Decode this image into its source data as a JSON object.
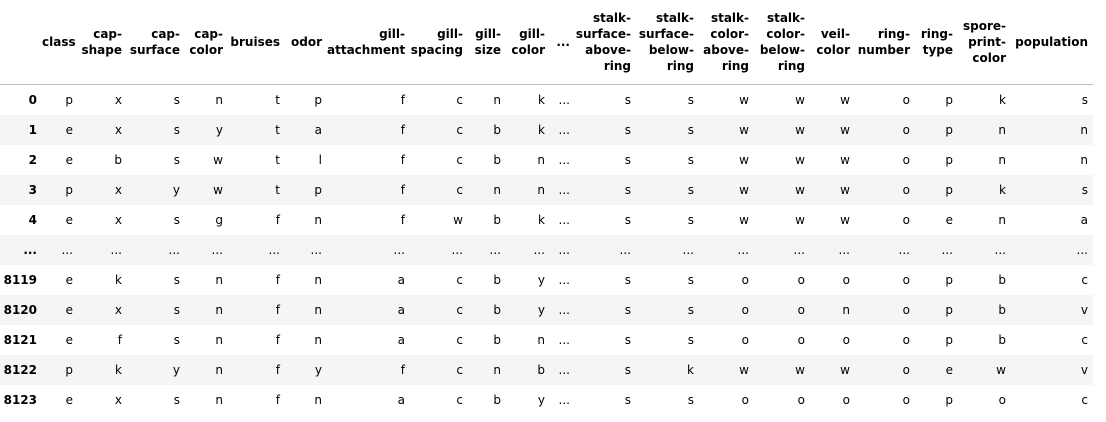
{
  "table": {
    "columns": [
      "class",
      "cap-shape",
      "cap-surface",
      "cap-color",
      "bruises",
      "odor",
      "gill-attachment",
      "gill-spacing",
      "gill-size",
      "gill-color",
      "...",
      "stalk-surface-above-ring",
      "stalk-surface-below-ring",
      "stalk-color-above-ring",
      "stalk-color-below-ring",
      "veil-color",
      "ring-number",
      "ring-type",
      "spore-print-color",
      "population"
    ],
    "rows": [
      {
        "index": "0",
        "cells": [
          "p",
          "x",
          "s",
          "n",
          "t",
          "p",
          "f",
          "c",
          "n",
          "k",
          "...",
          "s",
          "s",
          "w",
          "w",
          "w",
          "o",
          "p",
          "k",
          "s"
        ]
      },
      {
        "index": "1",
        "cells": [
          "e",
          "x",
          "s",
          "y",
          "t",
          "a",
          "f",
          "c",
          "b",
          "k",
          "...",
          "s",
          "s",
          "w",
          "w",
          "w",
          "o",
          "p",
          "n",
          "n"
        ]
      },
      {
        "index": "2",
        "cells": [
          "e",
          "b",
          "s",
          "w",
          "t",
          "l",
          "f",
          "c",
          "b",
          "n",
          "...",
          "s",
          "s",
          "w",
          "w",
          "w",
          "o",
          "p",
          "n",
          "n"
        ]
      },
      {
        "index": "3",
        "cells": [
          "p",
          "x",
          "y",
          "w",
          "t",
          "p",
          "f",
          "c",
          "n",
          "n",
          "...",
          "s",
          "s",
          "w",
          "w",
          "w",
          "o",
          "p",
          "k",
          "s"
        ]
      },
      {
        "index": "4",
        "cells": [
          "e",
          "x",
          "s",
          "g",
          "f",
          "n",
          "f",
          "w",
          "b",
          "k",
          "...",
          "s",
          "s",
          "w",
          "w",
          "w",
          "o",
          "e",
          "n",
          "a"
        ]
      },
      {
        "index": "...",
        "cells": [
          "...",
          "...",
          "...",
          "...",
          "...",
          "...",
          "...",
          "...",
          "...",
          "...",
          "...",
          "...",
          "...",
          "...",
          "...",
          "...",
          "...",
          "...",
          "...",
          "..."
        ]
      },
      {
        "index": "8119",
        "cells": [
          "e",
          "k",
          "s",
          "n",
          "f",
          "n",
          "a",
          "c",
          "b",
          "y",
          "...",
          "s",
          "s",
          "o",
          "o",
          "o",
          "o",
          "p",
          "b",
          "c"
        ]
      },
      {
        "index": "8120",
        "cells": [
          "e",
          "x",
          "s",
          "n",
          "f",
          "n",
          "a",
          "c",
          "b",
          "y",
          "...",
          "s",
          "s",
          "o",
          "o",
          "n",
          "o",
          "p",
          "b",
          "v"
        ]
      },
      {
        "index": "8121",
        "cells": [
          "e",
          "f",
          "s",
          "n",
          "f",
          "n",
          "a",
          "c",
          "b",
          "n",
          "...",
          "s",
          "s",
          "o",
          "o",
          "o",
          "o",
          "p",
          "b",
          "c"
        ]
      },
      {
        "index": "8122",
        "cells": [
          "p",
          "k",
          "y",
          "n",
          "f",
          "y",
          "f",
          "c",
          "n",
          "b",
          "...",
          "s",
          "k",
          "w",
          "w",
          "w",
          "o",
          "e",
          "w",
          "v"
        ]
      },
      {
        "index": "8123",
        "cells": [
          "e",
          "x",
          "s",
          "n",
          "f",
          "n",
          "a",
          "c",
          "b",
          "y",
          "...",
          "s",
          "s",
          "o",
          "o",
          "o",
          "o",
          "p",
          "o",
          "c"
        ]
      }
    ]
  }
}
